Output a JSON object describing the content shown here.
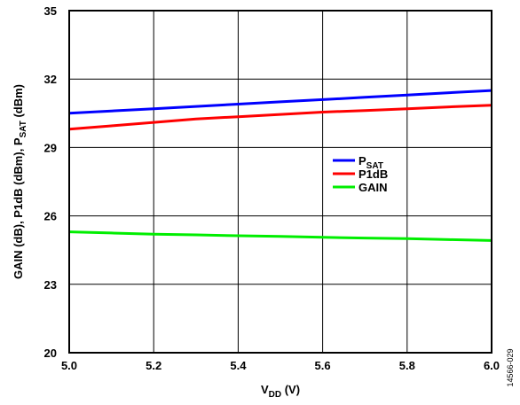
{
  "chart_data": {
    "type": "line",
    "x": [
      5.0,
      5.1,
      5.2,
      5.3,
      5.4,
      5.5,
      5.6,
      5.7,
      5.8,
      5.9,
      6.0
    ],
    "xlim": [
      5.0,
      6.0
    ],
    "ylim": [
      20,
      35
    ],
    "x_ticks": [
      5.0,
      5.2,
      5.4,
      5.6,
      5.8,
      6.0
    ],
    "y_ticks": [
      20,
      23,
      26,
      29,
      32,
      35
    ],
    "x_tick_labels": [
      "5.0",
      "5.2",
      "5.4",
      "5.6",
      "5.8",
      "6.0"
    ],
    "y_tick_labels": [
      "20",
      "23",
      "26",
      "29",
      "32",
      "35"
    ],
    "grid": true,
    "xlabel": {
      "main": "V",
      "sub": "DD",
      "suffix": " (V)"
    },
    "ylabel": {
      "main": "GAIN (dB), P1dB (dBm), P",
      "sub": "SAT",
      "suffix": " (dBm)"
    },
    "legend_position": "right-center",
    "series": [
      {
        "id": "psat",
        "legend": {
          "main": "P",
          "sub": "SAT"
        },
        "color": "#0000ff",
        "values": [
          30.5,
          30.6,
          30.7,
          30.8,
          30.9,
          31.0,
          31.1,
          31.2,
          31.3,
          31.4,
          31.5
        ]
      },
      {
        "id": "p1db",
        "legend": {
          "main": "P1dB",
          "sub": ""
        },
        "color": "#ff0000",
        "values": [
          29.8,
          29.95,
          30.1,
          30.25,
          30.35,
          30.45,
          30.55,
          30.62,
          30.7,
          30.78,
          30.85
        ]
      },
      {
        "id": "gain",
        "legend": {
          "main": "GAIN",
          "sub": ""
        },
        "color": "#00ee00",
        "values": [
          25.3,
          25.25,
          25.2,
          25.17,
          25.13,
          25.1,
          25.06,
          25.03,
          25.0,
          24.96,
          24.92
        ]
      }
    ]
  },
  "figure_id": "14566-029"
}
